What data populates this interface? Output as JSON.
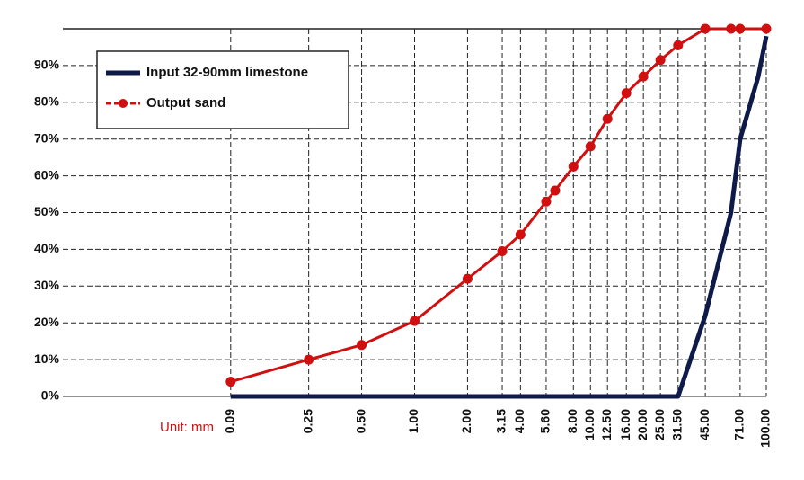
{
  "chart_data": {
    "type": "line",
    "annotation": "Unit: mm",
    "log_x": true,
    "grid": true,
    "legend": "upper left",
    "xlim": [
      0.01,
      100
    ],
    "ylim": [
      0,
      100
    ],
    "xticks": [
      0.09,
      0.25,
      {
        "value": 0.5,
        "label": "0.50"
      },
      {
        "value": 1,
        "label": "1.00"
      },
      {
        "value": 2,
        "label": "2.00"
      },
      3.15,
      {
        "value": 4,
        "label": "4.00"
      },
      {
        "value": 5.6,
        "label": "5.60"
      },
      {
        "value": 8,
        "label": "8.00"
      },
      {
        "value": 10,
        "label": "10.00"
      },
      {
        "value": 12.5,
        "label": "12.50"
      },
      {
        "value": 16,
        "label": "16.00"
      },
      {
        "value": 20,
        "label": "20.00"
      },
      {
        "value": 25,
        "label": "25.00"
      },
      {
        "value": 31.5,
        "label": "31.50"
      },
      {
        "value": 45,
        "label": "45.00"
      },
      {
        "value": 71,
        "label": "71.00"
      },
      {
        "value": 100,
        "label": "100.00"
      }
    ],
    "yticks": [
      {
        "value": 0,
        "label": "0%"
      },
      {
        "value": 10,
        "label": "10%"
      },
      {
        "value": 20,
        "label": "20%"
      },
      {
        "value": 30,
        "label": "30%"
      },
      {
        "value": 40,
        "label": "40%"
      },
      {
        "value": 50,
        "label": "50%"
      },
      {
        "value": 60,
        "label": "60%"
      },
      {
        "value": 70,
        "label": "70%"
      },
      {
        "value": 80,
        "label": "80%"
      },
      {
        "value": 90,
        "label": "90%"
      }
    ],
    "series": [
      {
        "name": "Input 32-90mm limestone",
        "color": "#0d1a4a",
        "markers": false,
        "x": [
          0.09,
          31.5,
          45,
          63,
          71,
          90,
          100
        ],
        "values": [
          0,
          0,
          22,
          50,
          70,
          87,
          98
        ]
      },
      {
        "name": "Output sand",
        "color": "#d01010",
        "markers": true,
        "x": [
          0.09,
          0.25,
          0.5,
          1,
          2,
          3.15,
          4,
          5.6,
          6.3,
          8,
          10,
          12.5,
          16,
          20,
          25,
          31.5,
          45,
          63,
          71,
          100
        ],
        "values": [
          4,
          10,
          14,
          20.5,
          32,
          39.5,
          44,
          53,
          56,
          62.5,
          68,
          75.5,
          82.5,
          87,
          91.5,
          95.5,
          100,
          100,
          100,
          100
        ]
      }
    ]
  }
}
